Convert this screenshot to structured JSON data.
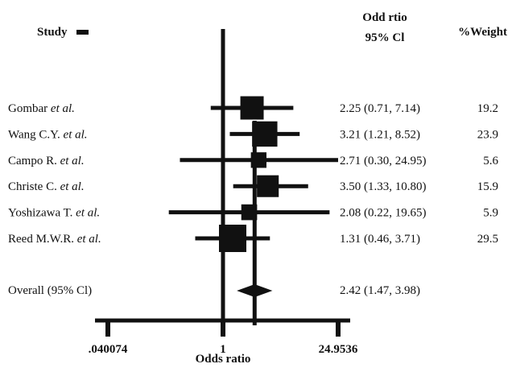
{
  "chart_data": {
    "type": "forest",
    "headers": {
      "study": "Study",
      "or_line1": "Odd rtio",
      "or_line2": "95% Cl",
      "weight": "%Weight"
    },
    "xlabel": "Odds ratio",
    "x_scale": "log",
    "xlim": [
      0.040074,
      24.9536
    ],
    "x_ticks": [
      {
        "value": 0.040074,
        "label": ".040074"
      },
      {
        "value": 1,
        "label": "1"
      },
      {
        "value": 24.9536,
        "label": "24.9536"
      }
    ],
    "studies": [
      {
        "name": "Gombar",
        "suffix": "et al.",
        "or": 2.25,
        "ci": [
          0.71,
          7.14
        ],
        "ci_text": "2.25 (0.71, 7.14)",
        "weight": 19.2,
        "weight_text": "19.2"
      },
      {
        "name": "Wang C.Y.",
        "suffix": "et al.",
        "or": 3.21,
        "ci": [
          1.21,
          8.52
        ],
        "ci_text": "3.21 (1.21, 8.52)",
        "weight": 23.9,
        "weight_text": "23.9"
      },
      {
        "name": "Campo R.",
        "suffix": "et al.",
        "or": 2.71,
        "ci": [
          0.3,
          24.95
        ],
        "ci_text": "2.71 (0.30, 24.95)",
        "weight": 5.6,
        "weight_text": "5.6"
      },
      {
        "name": "Christe C.",
        "suffix": "et al.",
        "or": 3.5,
        "ci": [
          1.33,
          10.8
        ],
        "ci_text": "3.50 (1.33, 10.80)",
        "weight": 15.9,
        "weight_text": "15.9"
      },
      {
        "name": "Yoshizawa T.",
        "suffix": "et al.",
        "or": 2.08,
        "ci": [
          0.22,
          19.65
        ],
        "ci_text": "2.08 (0.22, 19.65)",
        "weight": 5.9,
        "weight_text": "5.9"
      },
      {
        "name": "Reed M.W.R.",
        "suffix": "et al.",
        "or": 1.31,
        "ci": [
          0.46,
          3.71
        ],
        "ci_text": "1.31 (0.46, 3.71)",
        "weight": 29.5,
        "weight_text": "29.5"
      }
    ],
    "overall": {
      "name": "Overall (95% Cl)",
      "or": 2.42,
      "ci": [
        1.47,
        3.98
      ],
      "ci_text": "2.42 (1.47, 3.98)"
    }
  }
}
